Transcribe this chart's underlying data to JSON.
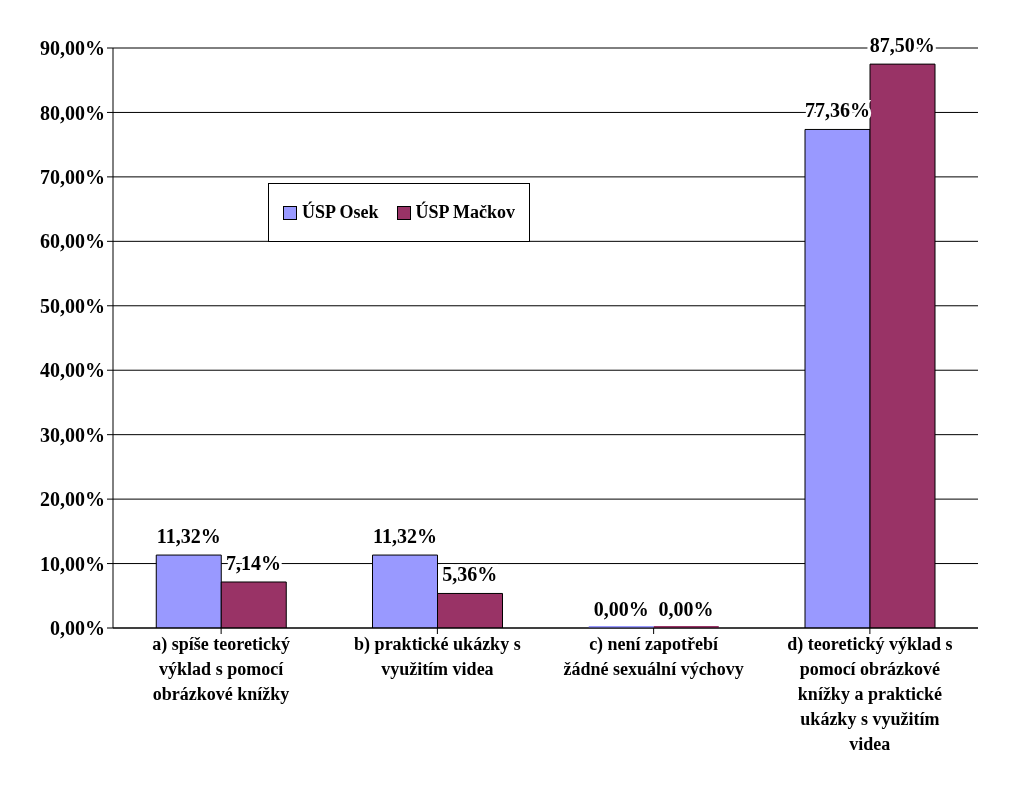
{
  "chart_data": {
    "type": "bar",
    "categories": [
      "a)      spíše teoretický výklad s pomocí obrázkové knížky",
      "b)      praktické ukázky s využitím videa",
      "c)      není zapotřebí žádné sexuální výchovy",
      "d)      teoretický výklad s pomocí obrázkové knížky a praktické ukázky s využitím videa"
    ],
    "series": [
      {
        "name": "ÚSP Osek",
        "color": "#9999ff",
        "values": [
          11.32,
          11.32,
          0,
          77.36
        ],
        "value_labels": [
          "11,32%",
          "11,32%",
          "0,00%",
          "77,36%"
        ]
      },
      {
        "name": "ÚSP Mačkov",
        "color": "#993366",
        "values": [
          7.14,
          5.36,
          0,
          87.5
        ],
        "value_labels": [
          "7,14%",
          "5,36%",
          "0,00%",
          "87,50%"
        ]
      }
    ],
    "ylim": [
      0,
      90
    ],
    "yticks": [
      {
        "value": 0,
        "label": "0,00%"
      },
      {
        "value": 10,
        "label": "10,00%"
      },
      {
        "value": 20,
        "label": "20,00%"
      },
      {
        "value": 30,
        "label": "30,00%"
      },
      {
        "value": 40,
        "label": "40,00%"
      },
      {
        "value": 50,
        "label": "50,00%"
      },
      {
        "value": 60,
        "label": "60,00%"
      },
      {
        "value": 70,
        "label": "70,00%"
      },
      {
        "value": 80,
        "label": "80,00%"
      },
      {
        "value": 90,
        "label": "90,00%"
      }
    ],
    "grid": "y",
    "legend": "top left"
  }
}
